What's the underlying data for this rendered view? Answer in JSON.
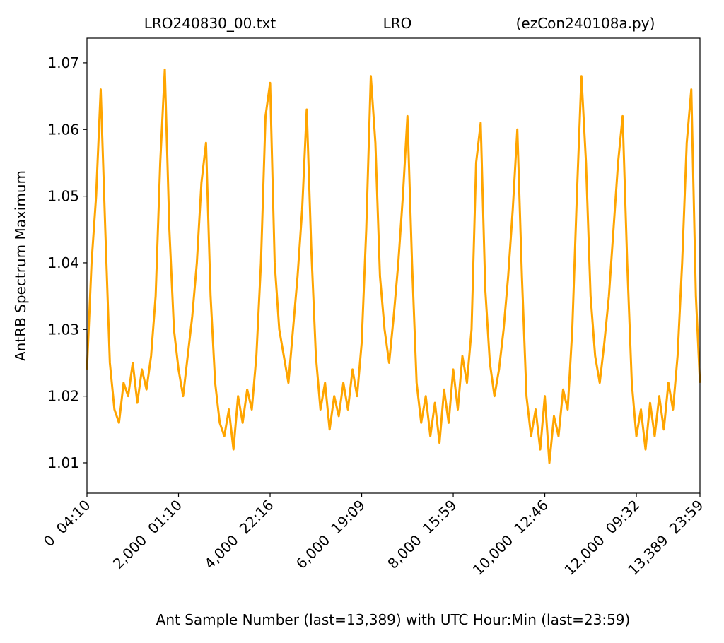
{
  "chart_data": {
    "type": "line",
    "titles": [
      "LRO240830_00.txt",
      "LRO",
      "(ezCon240108a.py)"
    ],
    "xlabel": "Ant Sample Number (last=13,389) with UTC Hour:Min (last=23:59)",
    "ylabel": "AntRB Spectrum Maximum",
    "xlim": [
      0,
      13389
    ],
    "ylim": [
      1.00544,
      1.0737
    ],
    "xticks": [
      {
        "value": 0,
        "label": "0  04:10"
      },
      {
        "value": 2000,
        "label": "2,000  01:10"
      },
      {
        "value": 4000,
        "label": "4,000  22:16"
      },
      {
        "value": 6000,
        "label": "6,000  19:09"
      },
      {
        "value": 8000,
        "label": "8,000  15:59"
      },
      {
        "value": 10000,
        "label": "10,000  12:46"
      },
      {
        "value": 12000,
        "label": "12,000  09:32"
      },
      {
        "value": 13389,
        "label": "13,389  23:59"
      }
    ],
    "yticks": [
      1.01,
      1.02,
      1.03,
      1.04,
      1.05,
      1.06,
      1.07
    ],
    "grid": false,
    "x": [
      0,
      100,
      200,
      300,
      400,
      500,
      600,
      700,
      800,
      900,
      1000,
      1100,
      1200,
      1300,
      1400,
      1500,
      1600,
      1700,
      1800,
      1900,
      2000,
      2100,
      2200,
      2300,
      2400,
      2500,
      2600,
      2700,
      2800,
      2900,
      3000,
      3100,
      3200,
      3300,
      3400,
      3500,
      3600,
      3700,
      3800,
      3900,
      4000,
      4100,
      4200,
      4300,
      4400,
      4500,
      4600,
      4700,
      4800,
      4900,
      5000,
      5100,
      5200,
      5300,
      5400,
      5500,
      5600,
      5700,
      5800,
      5900,
      6000,
      6100,
      6200,
      6300,
      6400,
      6500,
      6600,
      6700,
      6800,
      6900,
      7000,
      7100,
      7200,
      7300,
      7400,
      7500,
      7600,
      7700,
      7800,
      7900,
      8000,
      8100,
      8200,
      8300,
      8400,
      8500,
      8600,
      8700,
      8800,
      8900,
      9000,
      9100,
      9200,
      9300,
      9400,
      9500,
      9600,
      9700,
      9800,
      9900,
      10000,
      10100,
      10200,
      10300,
      10400,
      10500,
      10600,
      10700,
      10800,
      10900,
      11000,
      11100,
      11200,
      11300,
      11400,
      11500,
      11600,
      11700,
      11800,
      11900,
      12000,
      12100,
      12200,
      12300,
      12400,
      12500,
      12600,
      12700,
      12800,
      12900,
      13000,
      13100,
      13200,
      13300,
      13389
    ],
    "series": [
      {
        "color": "#ffa500",
        "values": [
          1.024,
          1.04,
          1.05,
          1.066,
          1.045,
          1.025,
          1.018,
          1.016,
          1.022,
          1.02,
          1.025,
          1.019,
          1.024,
          1.021,
          1.026,
          1.035,
          1.055,
          1.069,
          1.045,
          1.03,
          1.024,
          1.02,
          1.026,
          1.032,
          1.04,
          1.052,
          1.058,
          1.035,
          1.022,
          1.016,
          1.014,
          1.018,
          1.012,
          1.02,
          1.016,
          1.021,
          1.018,
          1.026,
          1.04,
          1.062,
          1.067,
          1.04,
          1.03,
          1.026,
          1.022,
          1.03,
          1.038,
          1.048,
          1.063,
          1.042,
          1.026,
          1.018,
          1.022,
          1.015,
          1.02,
          1.017,
          1.022,
          1.018,
          1.024,
          1.02,
          1.028,
          1.045,
          1.068,
          1.058,
          1.038,
          1.03,
          1.025,
          1.032,
          1.04,
          1.05,
          1.062,
          1.04,
          1.022,
          1.016,
          1.02,
          1.014,
          1.019,
          1.013,
          1.021,
          1.016,
          1.024,
          1.018,
          1.026,
          1.022,
          1.03,
          1.055,
          1.061,
          1.036,
          1.025,
          1.02,
          1.024,
          1.03,
          1.038,
          1.048,
          1.06,
          1.038,
          1.02,
          1.014,
          1.018,
          1.012,
          1.02,
          1.01,
          1.017,
          1.014,
          1.021,
          1.018,
          1.03,
          1.05,
          1.068,
          1.055,
          1.035,
          1.026,
          1.022,
          1.028,
          1.035,
          1.045,
          1.055,
          1.062,
          1.04,
          1.022,
          1.014,
          1.018,
          1.012,
          1.019,
          1.014,
          1.02,
          1.015,
          1.022,
          1.018,
          1.026,
          1.04,
          1.058,
          1.066,
          1.035,
          1.022
        ]
      }
    ]
  }
}
